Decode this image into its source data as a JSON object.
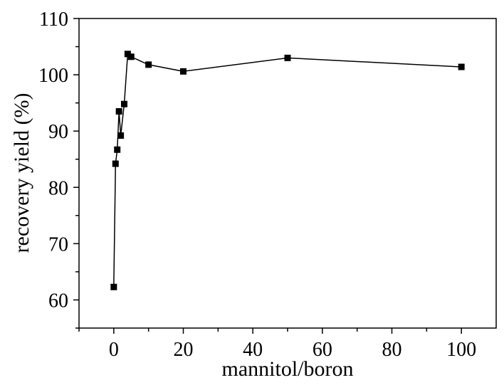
{
  "chart_data": {
    "type": "line",
    "title": "",
    "xlabel": "mannitol/boron",
    "ylabel": "recovery yield (%)",
    "xlim": [
      -10,
      110
    ],
    "ylim": [
      55,
      110
    ],
    "xticks": [
      0,
      20,
      40,
      60,
      80,
      100
    ],
    "yticks": [
      60,
      70,
      80,
      90,
      100,
      110
    ],
    "xtick_labels": [
      "0",
      "20",
      "40",
      "60",
      "80",
      "100"
    ],
    "ytick_labels": [
      "60",
      "70",
      "80",
      "90",
      "100",
      "110"
    ],
    "grid": false,
    "legend": "none",
    "marker": "square",
    "color": "#000000",
    "series": [
      {
        "x": [
          0,
          0.5,
          1,
          1.5,
          2,
          3,
          4,
          5,
          10,
          20,
          50,
          100
        ],
        "y": [
          62.3,
          84.2,
          86.7,
          93.5,
          89.2,
          94.8,
          103.7,
          103.2,
          101.8,
          100.6,
          103.0,
          101.4
        ]
      }
    ]
  }
}
